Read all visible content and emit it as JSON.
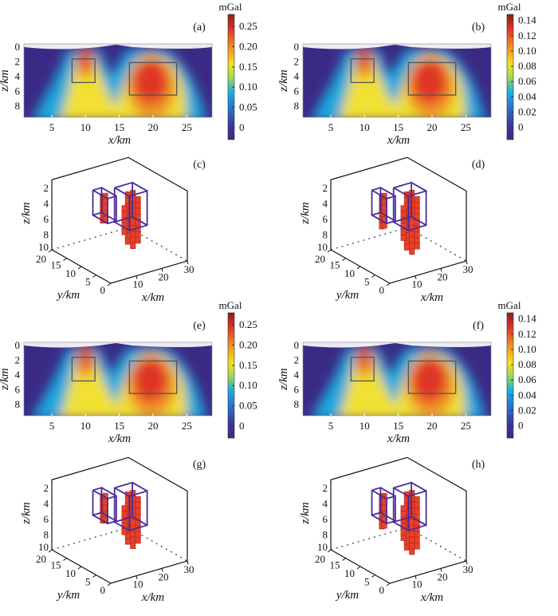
{
  "chart_data": [
    {
      "panel": "(a)",
      "type": "heatmap",
      "unit": "mGal",
      "xlabel": "x/km",
      "ylabel": "z/km",
      "xticks": [
        5,
        10,
        15,
        20,
        25
      ],
      "yticks": [
        0,
        2,
        4,
        6,
        8
      ],
      "xlim": [
        1,
        29
      ],
      "ylim": [
        0,
        9.5
      ],
      "cbar_ticks": [
        "0",
        "0.05",
        "0.10",
        "0.15",
        "0.20",
        "0.25"
      ],
      "cbar_values": [
        0,
        0.05,
        0.1,
        0.15,
        0.2,
        0.25
      ],
      "cbar_range": [
        -0.03,
        0.28
      ],
      "peaks": [
        {
          "x": 10,
          "z": 1.5,
          "value": 0.27
        },
        {
          "x": 19.5,
          "z": 4.5,
          "value": 0.24
        }
      ],
      "bodies": [
        {
          "x": [
            8,
            11.4
          ],
          "z": [
            1.6,
            4.8
          ]
        },
        {
          "x": [
            16.5,
            23.5
          ],
          "z": [
            2.1,
            6.5
          ]
        }
      ]
    },
    {
      "panel": "(b)",
      "type": "heatmap",
      "unit": "mGal",
      "xlabel": "x/km",
      "ylabel": "z/km",
      "xticks": [
        5,
        10,
        15,
        20,
        25
      ],
      "yticks": [
        0,
        2,
        4,
        6,
        8
      ],
      "xlim": [
        1,
        29
      ],
      "ylim": [
        0,
        9.5
      ],
      "cbar_ticks": [
        "0",
        "0.02",
        "0.04",
        "0.06",
        "0.08",
        "0.10",
        "0.12",
        "0.14"
      ],
      "cbar_values": [
        0,
        0.02,
        0.04,
        0.06,
        0.08,
        0.1,
        0.12,
        0.14
      ],
      "cbar_range": [
        -0.016,
        0.148
      ],
      "peaks": [
        {
          "x": 10,
          "z": 1.0,
          "value": 0.14
        },
        {
          "x": 19.5,
          "z": 4.5,
          "value": 0.12
        }
      ],
      "bodies": [
        {
          "x": [
            8,
            11.4
          ],
          "z": [
            1.6,
            4.8
          ]
        },
        {
          "x": [
            16.5,
            23.5
          ],
          "z": [
            2.1,
            6.5
          ]
        }
      ]
    },
    {
      "panel": "(c)",
      "type": "3d-voxel",
      "xlabel": "x/km",
      "ylabel": "y/km",
      "zlabel": "z/km",
      "xticks": [
        10,
        20,
        30
      ],
      "yticks": [
        0,
        5,
        10,
        15,
        20
      ],
      "zticks": [
        2,
        4,
        6,
        8,
        10
      ],
      "bodies": [
        {
          "x": [
            8,
            11.4
          ],
          "z": [
            1.6,
            4.8
          ]
        },
        {
          "x": [
            16.5,
            23.5
          ],
          "z": [
            2.1,
            6.5
          ]
        }
      ]
    },
    {
      "panel": "(d)",
      "type": "3d-voxel",
      "xlabel": "x/km",
      "ylabel": "y/km",
      "zlabel": "z/km",
      "xticks": [
        10,
        20,
        30
      ],
      "yticks": [
        0,
        5,
        10,
        15,
        20
      ],
      "zticks": [
        2,
        4,
        6,
        8,
        10
      ],
      "bodies": [
        {
          "x": [
            8,
            11.4
          ],
          "z": [
            1.6,
            4.8
          ]
        },
        {
          "x": [
            16.5,
            23.5
          ],
          "z": [
            2.1,
            6.5
          ]
        }
      ]
    },
    {
      "panel": "(e)",
      "type": "heatmap",
      "unit": "mGal",
      "xlabel": "x/km",
      "ylabel": "z/km",
      "xticks": [
        5,
        10,
        15,
        20,
        25
      ],
      "yticks": [
        0,
        2,
        4,
        6,
        8
      ],
      "xlim": [
        1,
        29
      ],
      "ylim": [
        0,
        9.5
      ],
      "cbar_ticks": [
        "0",
        "0.05",
        "0.10",
        "0.15",
        "0.20",
        "0.25"
      ],
      "cbar_values": [
        0,
        0.05,
        0.1,
        0.15,
        0.2,
        0.25
      ],
      "cbar_range": [
        -0.03,
        0.28
      ],
      "peaks": [
        {
          "x": 10,
          "z": 2,
          "value": 0.26
        },
        {
          "x": 19.5,
          "z": 4.5,
          "value": 0.24
        }
      ],
      "bodies": [
        {
          "x": [
            8,
            11.4
          ],
          "z": [
            1.6,
            4.8
          ]
        },
        {
          "x": [
            16.5,
            23.5
          ],
          "z": [
            2.1,
            6.5
          ]
        }
      ]
    },
    {
      "panel": "(f)",
      "type": "heatmap",
      "unit": "mGal",
      "xlabel": "x/km",
      "ylabel": "z/km",
      "xticks": [
        5,
        10,
        15,
        20,
        25
      ],
      "yticks": [
        0,
        2,
        4,
        6,
        8
      ],
      "xlim": [
        1,
        29
      ],
      "ylim": [
        0,
        9.5
      ],
      "cbar_ticks": [
        "0",
        "0.02",
        "0.04",
        "0.06",
        "0.08",
        "0.10",
        "0.12",
        "0.14"
      ],
      "cbar_values": [
        0,
        0.02,
        0.04,
        0.06,
        0.08,
        0.1,
        0.12,
        0.14
      ],
      "cbar_range": [
        -0.016,
        0.148
      ],
      "peaks": [
        {
          "x": 10,
          "z": 1.5,
          "value": 0.14
        },
        {
          "x": 19.5,
          "z": 4.5,
          "value": 0.12
        }
      ],
      "bodies": [
        {
          "x": [
            8,
            11.4
          ],
          "z": [
            1.6,
            4.8
          ]
        },
        {
          "x": [
            16.5,
            23.5
          ],
          "z": [
            2.1,
            6.5
          ]
        }
      ]
    },
    {
      "panel": "(g)",
      "type": "3d-voxel",
      "xlabel": "x/km",
      "ylabel": "y/km",
      "zlabel": "z/km",
      "xticks": [
        10,
        20,
        30
      ],
      "yticks": [
        0,
        5,
        10,
        15,
        20
      ],
      "zticks": [
        2,
        4,
        6,
        8,
        10
      ],
      "bodies": [
        {
          "x": [
            8,
            11.4
          ],
          "z": [
            1.6,
            4.8
          ]
        },
        {
          "x": [
            16.5,
            23.5
          ],
          "z": [
            2.1,
            6.5
          ]
        }
      ]
    },
    {
      "panel": "(h)",
      "type": "3d-voxel",
      "xlabel": "x/km",
      "ylabel": "y/km",
      "zlabel": "z/km",
      "xticks": [
        10,
        20,
        30
      ],
      "yticks": [
        0,
        5,
        10,
        15,
        20
      ],
      "zticks": [
        2,
        4,
        6,
        8,
        10
      ],
      "bodies": [
        {
          "x": [
            8,
            11.4
          ],
          "z": [
            1.6,
            4.8
          ]
        },
        {
          "x": [
            16.5,
            23.5
          ],
          "z": [
            2.1,
            6.5
          ]
        }
      ]
    }
  ],
  "colors": {
    "background": "#3b2a85",
    "cyan": "#1aa8dc",
    "yellow": "#f2e030",
    "orange": "#f09028",
    "red": "#e03528",
    "box": "#4a2a9a",
    "voxel": "#e8402a"
  }
}
